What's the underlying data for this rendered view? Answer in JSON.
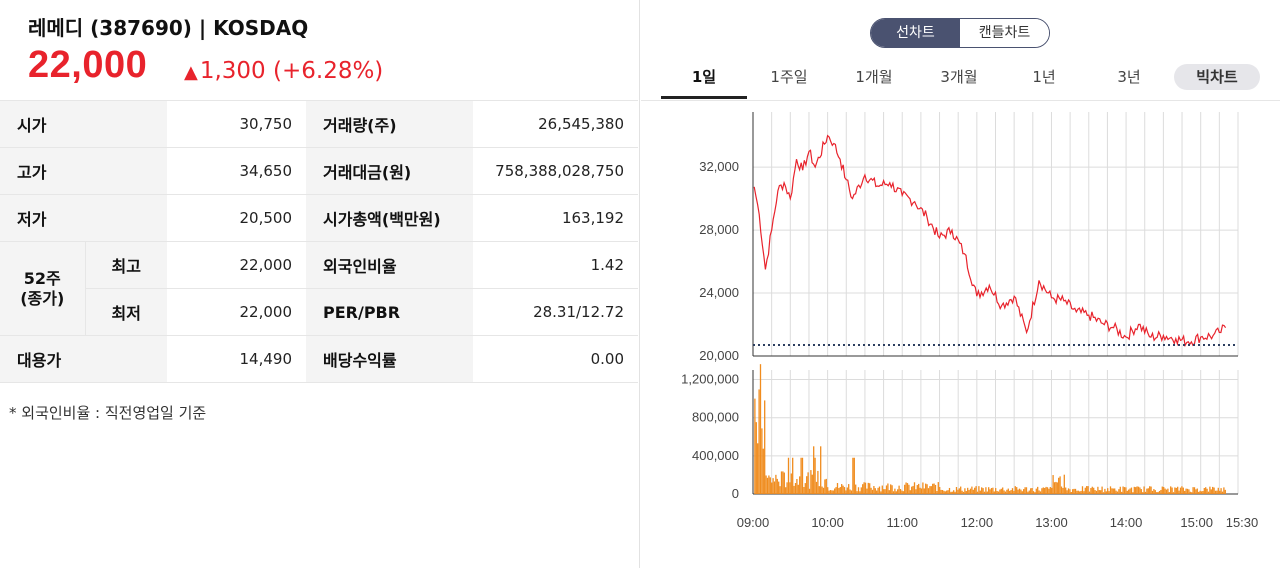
{
  "stock": {
    "title": "레메디 (387690) | KOSDAQ",
    "price": "22,000",
    "change_symbol": "▲",
    "change": "1,300 (+6.28%)",
    "up_color": "#e8232c"
  },
  "table": {
    "open_label": "시가",
    "open_value": "30,750",
    "volume_label": "거래량(주)",
    "volume_value": "26,545,380",
    "high_label": "고가",
    "high_value": "34,650",
    "amount_label": "거래대금(원)",
    "amount_value": "758,388,028,750",
    "low_label": "저가",
    "low_value": "20,500",
    "mcap_label": "시가총액(백만원)",
    "mcap_value": "163,192",
    "w52_label": "52주\n(종가)",
    "w52_high_label": "최고",
    "w52_high_value": "22,000",
    "foreign_label": "외국인비율",
    "foreign_value": "1.42",
    "w52_low_label": "최저",
    "w52_low_value": "22,000",
    "perpbr_label": "PER/PBR",
    "perpbr_value": "28.31/12.72",
    "sub_label": "대용가",
    "sub_value": "14,490",
    "div_label": "배당수익률",
    "div_value": "0.00"
  },
  "footnote": "* 외국인비율 : 직전영업일 기준",
  "chart_toggle": {
    "line": "선차트",
    "candle": "캔들차트",
    "selected": "선차트"
  },
  "tabs": [
    "1일",
    "1주일",
    "1개월",
    "3개월",
    "1년",
    "3년"
  ],
  "active_tab": "1일",
  "big_chart_label": "빅차트",
  "chart_data": [
    {
      "type": "line",
      "series": [
        {
          "color": "#e8232c",
          "x": [
            "09:01",
            "09:05",
            "09:10",
            "09:15",
            "09:20",
            "09:25",
            "09:30",
            "09:35",
            "09:40",
            "09:45",
            "09:50",
            "10:00",
            "10:05",
            "10:10",
            "10:15",
            "10:20",
            "10:30",
            "10:40",
            "10:50",
            "11:00",
            "11:10",
            "11:20",
            "11:30",
            "11:40",
            "11:50",
            "12:00",
            "12:10",
            "12:20",
            "12:30",
            "12:40",
            "12:50",
            "13:00",
            "13:10",
            "13:20",
            "13:30",
            "13:40",
            "13:50",
            "14:00",
            "14:10",
            "14:20",
            "14:30",
            "14:40",
            "14:50",
            "15:00",
            "15:10",
            "15:15",
            "15:20"
          ],
          "values": [
            30750,
            29000,
            25500,
            28000,
            30500,
            31000,
            30000,
            32500,
            31800,
            33000,
            32000,
            34000,
            33500,
            32500,
            31200,
            30000,
            31500,
            30800,
            31000,
            30200,
            29800,
            28800,
            27500,
            28000,
            26500,
            23800,
            24500,
            23200,
            23800,
            21500,
            24800,
            23700,
            23500,
            22800,
            22600,
            22100,
            21800,
            21200,
            22000,
            21200,
            21300,
            21100,
            20900,
            21200,
            21300,
            21500,
            21800
          ]
        }
      ],
      "reference_line": 20700,
      "ylim": [
        20000,
        35500
      ],
      "yticks": [
        "20,000",
        "24,000",
        "28,000",
        "32,000"
      ],
      "grid": true
    },
    {
      "type": "bar",
      "series": [
        {
          "color": "#f08c1e"
        }
      ],
      "ylim": [
        0,
        1300000
      ],
      "yticks": [
        "0",
        "400,000",
        "800,000",
        "1,200,000"
      ],
      "peak_values": [
        1000000,
        500000,
        380000,
        300000,
        350000,
        200000,
        150000
      ],
      "xticks": [
        "09:00",
        "10:00",
        "11:00",
        "12:00",
        "13:00",
        "14:00",
        "15:00",
        "15:30"
      ],
      "grid": true
    }
  ]
}
